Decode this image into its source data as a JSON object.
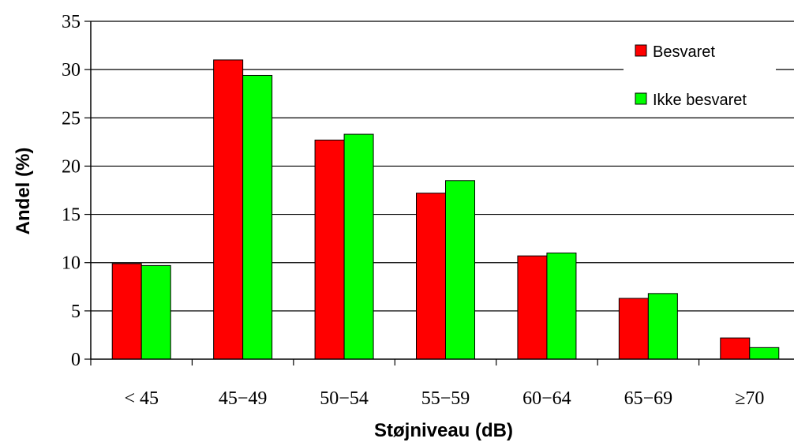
{
  "chart_data": {
    "type": "bar",
    "title": "",
    "xlabel": "Støjniveau (dB)",
    "ylabel": "Andel (%)",
    "ylim": [
      0,
      35
    ],
    "yticks": [
      "0",
      "5",
      "10",
      "15",
      "20",
      "25",
      "30",
      "35"
    ],
    "categories": [
      "< 45",
      "45−49",
      "50−54",
      "55−59",
      "60−64",
      "65−69",
      "≥70"
    ],
    "grid": true,
    "legend_position": "top-right",
    "series": [
      {
        "name": "Besvaret",
        "color": "#ff0000",
        "values": [
          9.9,
          31.0,
          22.7,
          17.2,
          10.7,
          6.3,
          2.2
        ]
      },
      {
        "name": "Ikke besvaret",
        "color": "#00ff00",
        "values": [
          9.7,
          29.4,
          23.3,
          18.5,
          11.0,
          6.8,
          1.2
        ]
      }
    ]
  }
}
